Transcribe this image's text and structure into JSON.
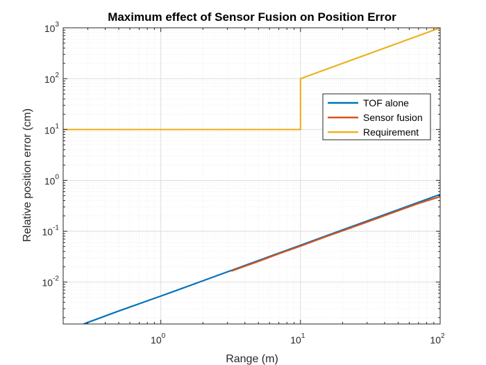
{
  "chart_data": {
    "type": "line",
    "title": "Maximum effect of Sensor Fusion on Position Error",
    "xlabel": "Range (m)",
    "ylabel": "Relative position error (cm)",
    "xscale": "log",
    "yscale": "log",
    "xlim": [
      0.2,
      100
    ],
    "ylim": [
      0.0015,
      1000
    ],
    "grid": true,
    "minor_grid": true,
    "legend_position": "upper-right",
    "x_ticks": [
      {
        "value": 1,
        "base": "10",
        "exp": "0"
      },
      {
        "value": 10,
        "base": "10",
        "exp": "1"
      },
      {
        "value": 100,
        "base": "10",
        "exp": "2"
      }
    ],
    "y_ticks": [
      {
        "value": 0.01,
        "base": "10",
        "exp": "-2"
      },
      {
        "value": 0.1,
        "base": "10",
        "exp": "-1"
      },
      {
        "value": 1,
        "base": "10",
        "exp": "0"
      },
      {
        "value": 10,
        "base": "10",
        "exp": "1"
      },
      {
        "value": 100,
        "base": "10",
        "exp": "2"
      },
      {
        "value": 1000,
        "base": "10",
        "exp": "3"
      }
    ],
    "series": [
      {
        "name": "TOF alone",
        "color": "#0072BD",
        "x": [
          0.28,
          0.5,
          1,
          2,
          5,
          10,
          20,
          50,
          100
        ],
        "y": [
          0.0015,
          0.0027,
          0.0053,
          0.0106,
          0.0265,
          0.053,
          0.106,
          0.265,
          0.53
        ]
      },
      {
        "name": "Sensor fusion",
        "color": "#D95319",
        "x": [
          3.2,
          3.5,
          4,
          5,
          7,
          10,
          15,
          20,
          30,
          50,
          70,
          100
        ],
        "y": [
          0.0165,
          0.018,
          0.0205,
          0.0255,
          0.036,
          0.051,
          0.077,
          0.102,
          0.152,
          0.253,
          0.352,
          0.48
        ]
      },
      {
        "name": "Requirement",
        "color": "#EDB120",
        "x": [
          0.2,
          10,
          10,
          100
        ],
        "y": [
          10,
          10,
          100,
          1000
        ]
      }
    ]
  }
}
